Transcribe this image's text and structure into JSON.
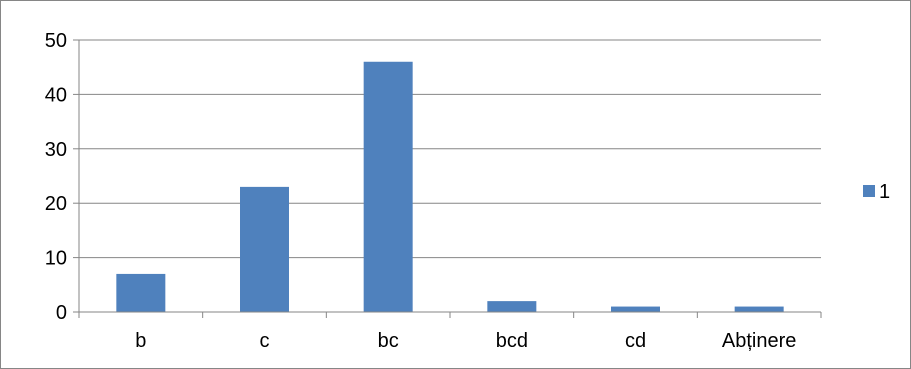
{
  "chart_data": {
    "type": "bar",
    "categories": [
      "b",
      "c",
      "bc",
      "bcd",
      "cd",
      "Abținere"
    ],
    "series": [
      {
        "name": "1",
        "values": [
          7,
          23,
          46,
          2,
          1,
          1
        ],
        "color": "#4F81BD"
      }
    ],
    "ylim": [
      0,
      50
    ],
    "yticks": [
      0,
      10,
      20,
      30,
      40,
      50
    ],
    "grid": true,
    "legend": "right",
    "title": "",
    "xlabel": "",
    "ylabel": ""
  }
}
